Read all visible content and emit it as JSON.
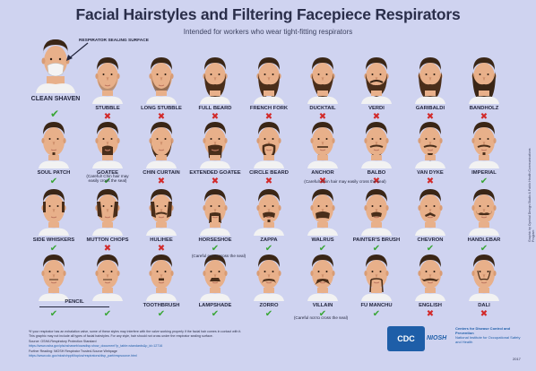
{
  "title": "Facial Hairstyles and Filtering Facepiece Respirators",
  "subtitle": "Intended for workers who wear tight-fitting respirators",
  "respirator_label": "RESPIRATOR SEALING SURFACE",
  "clean_shaven": {
    "label": "CLEAN SHAVEN",
    "allowed": true
  },
  "colors": {
    "background": "#cfd3f0",
    "ok": "#3aa637",
    "no": "#d22a2a",
    "skin": "#e8b08a",
    "hair": "#5a3a22"
  },
  "styles": [
    {
      "label": "STUBBLE",
      "allowed": false,
      "icon": "stubble-face-icon"
    },
    {
      "label": "LONG STUBBLE",
      "allowed": false,
      "icon": "long-stubble-face-icon"
    },
    {
      "label": "FULL BEARD",
      "allowed": false,
      "icon": "full-beard-face-icon"
    },
    {
      "label": "FRENCH FORK",
      "allowed": false,
      "icon": "french-fork-face-icon"
    },
    {
      "label": "DUCKTAIL",
      "allowed": false,
      "icon": "ducktail-face-icon"
    },
    {
      "label": "VERDI",
      "allowed": false,
      "icon": "verdi-face-icon"
    },
    {
      "label": "GARIBALDI",
      "allowed": false,
      "icon": "garibaldi-face-icon"
    },
    {
      "label": "BANDHOLZ",
      "allowed": false,
      "icon": "bandholz-face-icon"
    },
    {
      "label": "SOUL PATCH",
      "allowed": true,
      "icon": "soul-patch-face-icon"
    },
    {
      "label": "GOATEE",
      "allowed": true,
      "icon": "goatee-face-icon"
    },
    {
      "label": "CHIN CURTAIN",
      "allowed": false,
      "icon": "chin-curtain-face-icon"
    },
    {
      "label": "EXTENDED GOATEE",
      "allowed": false,
      "icon": "extended-goatee-face-icon"
    },
    {
      "label": "CIRCLE BEARD",
      "allowed": false,
      "icon": "circle-beard-face-icon"
    },
    {
      "label": "ANCHOR",
      "allowed": false,
      "icon": "anchor-face-icon"
    },
    {
      "label": "BALBO",
      "allowed": false,
      "icon": "balbo-face-icon"
    },
    {
      "label": "VAN DYKE",
      "allowed": false,
      "icon": "van-dyke-face-icon"
    },
    {
      "label": "IMPERIAL",
      "allowed": true,
      "icon": "imperial-face-icon"
    },
    {
      "label": "SIDE WHISKERS",
      "allowed": true,
      "icon": "side-whiskers-face-icon"
    },
    {
      "label": "MUTTON CHOPS",
      "allowed": false,
      "icon": "mutton-chops-face-icon"
    },
    {
      "label": "HULIHEE",
      "allowed": false,
      "icon": "hulihee-face-icon"
    },
    {
      "label": "HORSESHOE",
      "allowed": true,
      "icon": "horseshoe-face-icon"
    },
    {
      "label": "ZAPPA",
      "allowed": true,
      "icon": "zappa-face-icon"
    },
    {
      "label": "WALRUS",
      "allowed": true,
      "icon": "walrus-face-icon"
    },
    {
      "label": "PAINTER'S BRUSH",
      "allowed": true,
      "icon": "painters-brush-face-icon"
    },
    {
      "label": "CHEVRON",
      "allowed": true,
      "icon": "chevron-face-icon"
    },
    {
      "label": "HANDLEBAR",
      "allowed": true,
      "icon": "handlebar-face-icon"
    },
    {
      "label": "",
      "allowed": true,
      "icon": "pencil-face-icon"
    },
    {
      "label": "",
      "allowed": true,
      "icon": "pencil-face-icon"
    },
    {
      "label": "TOOTHBRUSH",
      "allowed": true,
      "icon": "toothbrush-face-icon"
    },
    {
      "label": "LAMPSHADE",
      "allowed": true,
      "icon": "lampshade-face-icon"
    },
    {
      "label": "ZORRO",
      "allowed": true,
      "icon": "zorro-face-icon"
    },
    {
      "label": "VILLAIN",
      "allowed": true,
      "icon": "villain-face-icon"
    },
    {
      "label": "FU MANCHU",
      "allowed": true,
      "icon": "fu-manchu-face-icon"
    },
    {
      "label": "ENGLISH",
      "allowed": false,
      "icon": "english-face-icon"
    },
    {
      "label": "DALI",
      "allowed": false,
      "icon": "dali-face-icon"
    }
  ],
  "notes": {
    "goatee": "(Careful! Chin hair may easily cross the seal)",
    "anchor_balbo": "(Careful! Chin hair may easily cross the seal)",
    "horseshoe": "(Careful not to cross the seal)",
    "villain": "(Careful not to cross the seal)",
    "pencil": "PENCIL"
  },
  "footer": {
    "line1": "*If your respirator has an exhalation valve, some of these styles may interfere with the valve working properly if the facial hair comes in contact with it.",
    "line2": "This graphic may not include all types of facial hairstyles. For any style, hair should not cross under the respirator sealing surface.",
    "line3": "Source: OSHA Respiratory Protection Standard",
    "line4": "https://www.osha.gov/pls/oshaweb/owadisp.show_document?p_table=standards&p_id=12716",
    "line5": "Further Reading: NIOSH Respirator Trusted-Source Webpage",
    "line6": "https://www.cdc.gov/niosh/npptl/topics/respirators/disp_part/respsource.html"
  },
  "logo": {
    "cdc": "CDC",
    "niosh": "NIOSH",
    "org1": "Centers for Disease Control and Prevention",
    "org2": "National Institute for Occupational Safety and Health"
  },
  "year": "2017",
  "side_text": "Graphic by Cymbal Design Studio & Public Health Communications Program"
}
